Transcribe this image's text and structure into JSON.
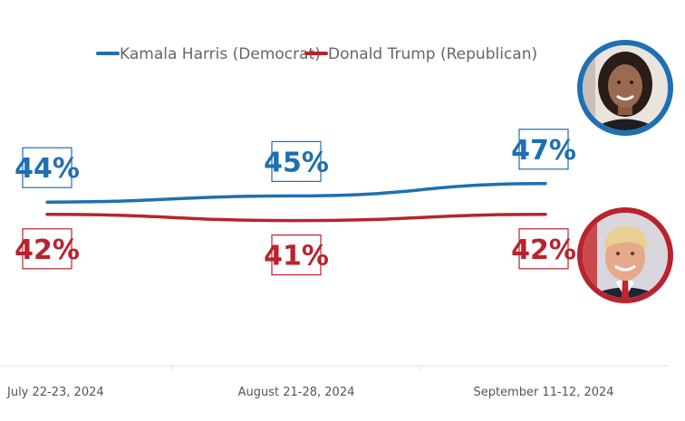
{
  "chart_data": {
    "type": "line",
    "categories": [
      "July 22-23, 2024",
      "August 21-28, 2024",
      "September 11-12, 2024"
    ],
    "series": [
      {
        "name": "Kamala Harris (Democrat)",
        "values": [
          44,
          45,
          47
        ],
        "labels": [
          "44%",
          "45%",
          "47%"
        ],
        "color": "#1f6fb2"
      },
      {
        "name": "Donald Trump (Republican)",
        "values": [
          42,
          41,
          42
        ],
        "labels": [
          "42%",
          "41%",
          "42%"
        ],
        "color": "#b8232e"
      }
    ],
    "title": "",
    "xlabel": "",
    "ylabel": "",
    "ylim": [
      35,
      55
    ],
    "grid": false,
    "legend_position": "top",
    "images": [
      {
        "name": "harris-portrait",
        "ring_color": "#1f6fb2"
      },
      {
        "name": "trump-portrait",
        "ring_color": "#b8232e"
      }
    ]
  }
}
